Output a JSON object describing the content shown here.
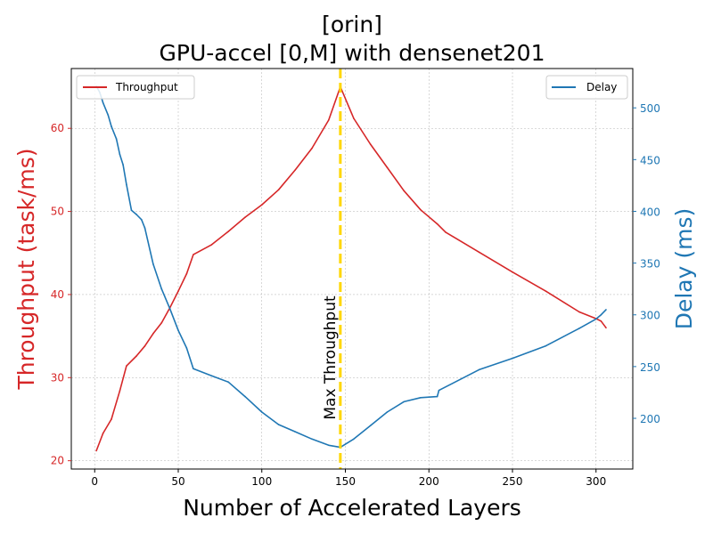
{
  "chart_data": {
    "type": "line",
    "title": "[orin]",
    "subtitle": "GPU-accel [0,M] with densenet201",
    "xlabel": "Number of Accelerated Layers",
    "ylabel_left": "Throughput (task/ms)",
    "ylabel_right": "Delay (ms)",
    "xlim": [
      -14,
      322
    ],
    "ylim_left": [
      19,
      67.2
    ],
    "ylim_right": [
      151,
      538
    ],
    "xticks": [
      0,
      50,
      100,
      150,
      200,
      250,
      300
    ],
    "yticks_left": [
      20,
      30,
      40,
      50,
      60
    ],
    "yticks_right": [
      200,
      250,
      300,
      350,
      400,
      450,
      500
    ],
    "grid": true,
    "colors": {
      "throughput": "#d62728",
      "delay": "#1f77b4",
      "marker": "#ffd700"
    },
    "series": [
      {
        "name": "Throughput",
        "axis": "left",
        "legend_position": "upper left",
        "x": [
          1,
          5,
          10,
          15,
          19,
          25,
          30,
          35,
          40,
          45,
          50,
          55,
          59,
          70,
          80,
          90,
          100,
          110,
          120,
          130,
          140,
          147,
          155,
          165,
          175,
          185,
          195,
          205,
          210,
          230,
          250,
          270,
          290,
          300,
          303,
          306
        ],
        "y": [
          21.2,
          23.3,
          25.0,
          28.4,
          31.4,
          32.6,
          33.8,
          35.3,
          36.6,
          38.4,
          40.4,
          42.5,
          44.8,
          46.0,
          47.6,
          49.3,
          50.8,
          52.6,
          55.0,
          57.6,
          61.0,
          65.0,
          61.2,
          58.1,
          55.3,
          52.5,
          50.2,
          48.5,
          47.5,
          45.1,
          42.7,
          40.4,
          37.9,
          37.1,
          36.8,
          36.0
        ]
      },
      {
        "name": "Delay",
        "axis": "right",
        "legend_position": "upper right",
        "x": [
          1,
          3,
          5,
          8,
          10,
          13,
          15,
          17,
          19,
          22,
          25,
          28,
          30,
          35,
          40,
          45,
          50,
          55,
          59,
          70,
          80,
          90,
          100,
          110,
          120,
          130,
          140,
          147,
          155,
          165,
          175,
          185,
          195,
          205,
          206,
          230,
          250,
          270,
          290,
          300,
          303,
          306
        ],
        "y": [
          521,
          515,
          505,
          493,
          482,
          470,
          455,
          445,
          426,
          401,
          397,
          392,
          384,
          349,
          325,
          306,
          285,
          268,
          248,
          241,
          235,
          221,
          206,
          194,
          187,
          180,
          174,
          172,
          180,
          193,
          206,
          216,
          220,
          221,
          227,
          247,
          258,
          270,
          287,
          296,
          300,
          305
        ]
      }
    ],
    "annotations": [
      {
        "text": "Max Throughput",
        "x": 147,
        "orientation": "vertical"
      }
    ]
  }
}
